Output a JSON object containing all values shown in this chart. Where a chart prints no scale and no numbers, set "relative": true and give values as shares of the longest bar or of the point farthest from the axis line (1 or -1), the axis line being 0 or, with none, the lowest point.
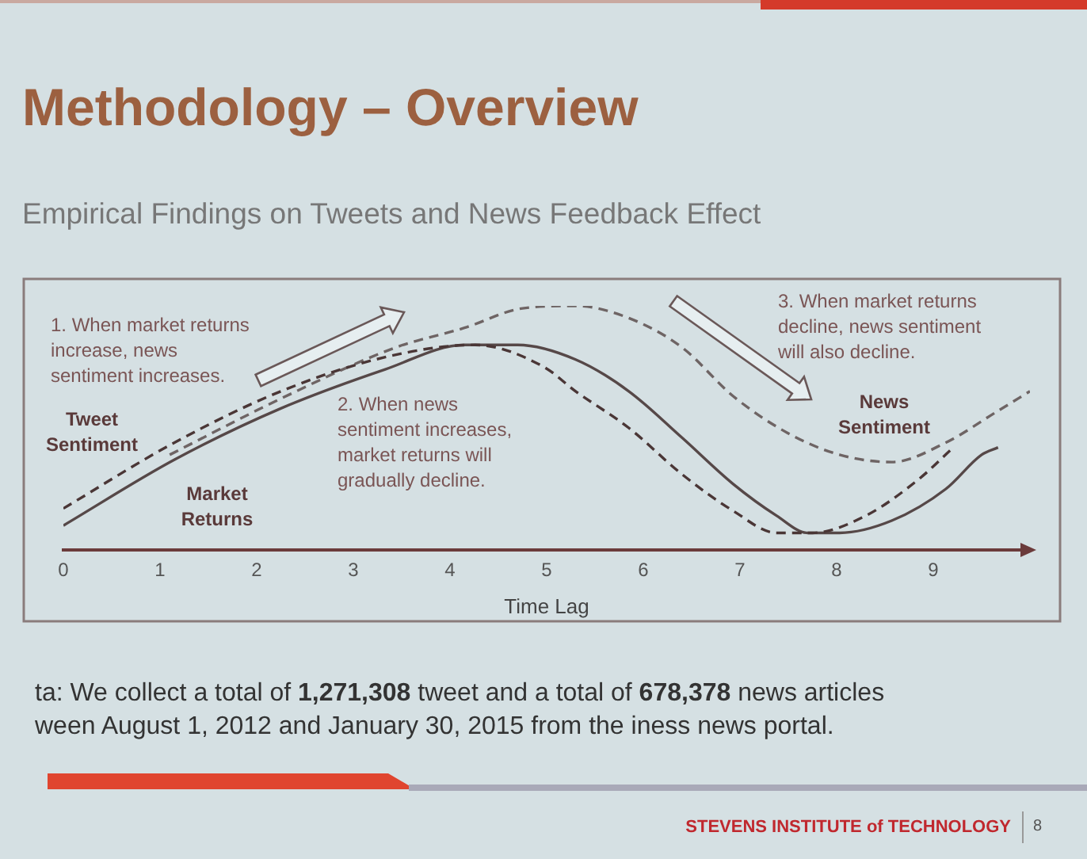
{
  "chart_data": {
    "type": "line",
    "title": "Methodology – Overview",
    "subtitle": "Empirical Findings on Tweets and News Feedback Effect",
    "xlabel": "Time Lag",
    "xlim": [
      0,
      10
    ],
    "xticks": [
      0,
      1,
      2,
      3,
      4,
      5,
      6,
      7,
      8,
      9
    ],
    "relative": true,
    "series": [
      {
        "name": "Tweet Sentiment",
        "color": "#4a3636",
        "line_style": "dashed",
        "x": [
          0,
          1.15,
          2.25,
          3.33,
          4.26,
          4.97,
          5.3,
          5.85,
          6.4,
          6.93,
          7.38,
          7.75,
          8.3,
          8.85,
          9.18
        ],
        "values": [
          0.17,
          0.44,
          0.65,
          0.79,
          0.84,
          0.75,
          0.65,
          0.5,
          0.31,
          0.16,
          0.07,
          0.07,
          0.14,
          0.29,
          0.41
        ]
      },
      {
        "name": "Market Returns",
        "color": "#564848",
        "line_style": "solid",
        "x": [
          0,
          1.15,
          2.25,
          3.33,
          4.15,
          4.7,
          5.3,
          5.85,
          6.4,
          6.93,
          7.38,
          7.7,
          8.03,
          8.57,
          9.13,
          9.5,
          9.67
        ],
        "values": [
          0.1,
          0.37,
          0.58,
          0.74,
          0.84,
          0.84,
          0.78,
          0.65,
          0.46,
          0.27,
          0.14,
          0.07,
          0.07,
          0.12,
          0.25,
          0.39,
          0.42
        ]
      },
      {
        "name": "News Sentiment",
        "color": "#6e6464",
        "line_style": "dashed",
        "x": [
          1.1,
          2.25,
          3.44,
          4.15,
          4.75,
          5.3,
          5.85,
          6.4,
          6.93,
          7.49,
          8.03,
          8.57,
          9.13,
          9.67,
          10
        ],
        "values": [
          0.39,
          0.62,
          0.83,
          0.91,
          0.99,
          1,
          0.95,
          0.83,
          0.63,
          0.48,
          0.39,
          0.36,
          0.44,
          0.57,
          0.65
        ]
      }
    ],
    "annotations": [
      "1. When market returns increase, news sentiment increases.",
      "2. When news sentiment increases, market returns will gradually decline.",
      "3. When market returns decline, news sentiment will also decline.",
      "ta: We collect a total of 1,271,308 tweet and a total of 678,378 news articles ween August 1, 2012 and January 30, 2015 from the iness news portal.",
      "STEVENS INSTITUTE of TECHNOLOGY",
      "8"
    ]
  }
}
